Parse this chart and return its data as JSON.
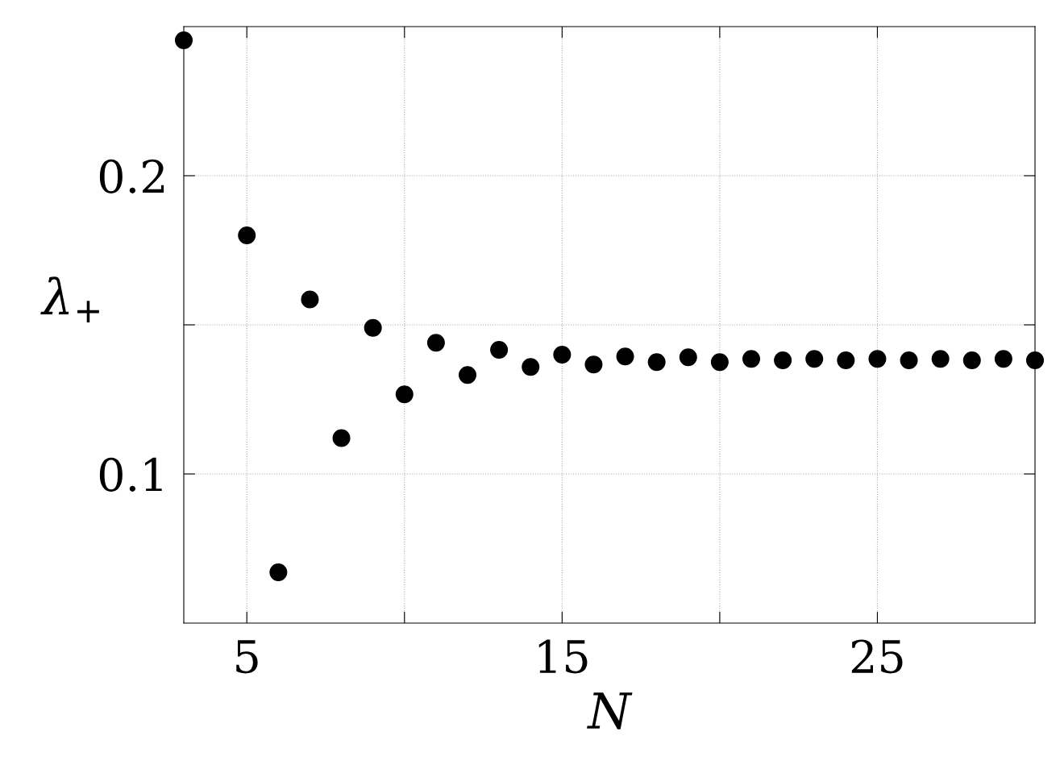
{
  "chart_data": {
    "type": "scatter",
    "xlabel": "N",
    "ylabel": "λ$_{+}$",
    "x": [
      3,
      5,
      6,
      7,
      8,
      9,
      10,
      11,
      12,
      13,
      14,
      15,
      16,
      17,
      18,
      19,
      20,
      21,
      22,
      23,
      24,
      25,
      26,
      27,
      28,
      29,
      30
    ],
    "series": [
      {
        "color": "#000000",
        "values": [
          0.2454,
          0.18,
          0.067,
          0.1585,
          0.112,
          0.149,
          0.1267,
          0.144,
          0.1332,
          0.1416,
          0.1359,
          0.14,
          0.1367,
          0.1394,
          0.1375,
          0.1391,
          0.1375,
          0.1386,
          0.1381,
          0.1386,
          0.1381,
          0.1386,
          0.1381,
          0.1386,
          0.1381,
          0.1386,
          0.1381
        ]
      }
    ],
    "xlim": [
      3,
      30
    ],
    "ylim": [
      0.05,
      0.25
    ],
    "xticks": [
      5,
      {
        "value": 10,
        "label": null
      },
      15,
      {
        "value": 20,
        "label": null
      },
      25
    ],
    "yticks": [
      0.1,
      {
        "value": 0.15,
        "label": null
      },
      0.2
    ],
    "grid": true,
    "marker": "circle",
    "legend": false
  }
}
